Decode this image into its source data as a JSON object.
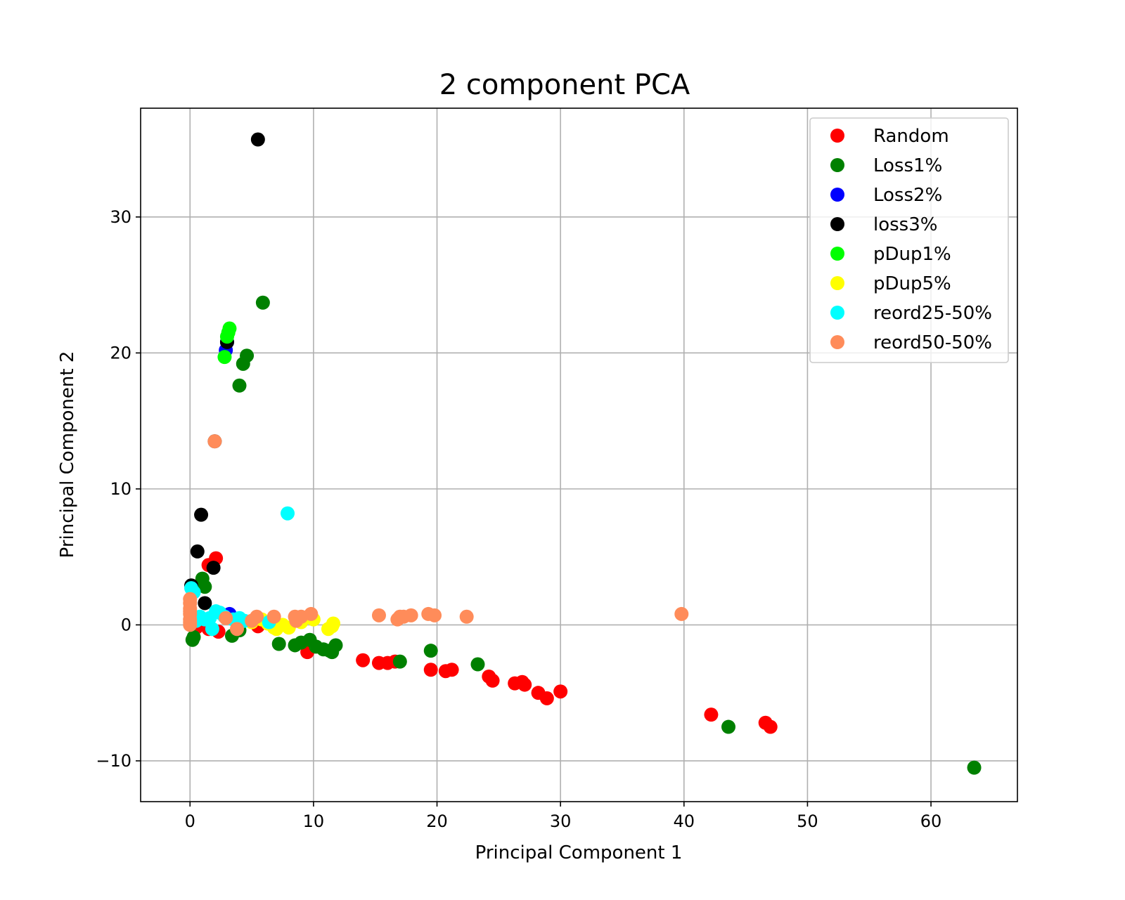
{
  "chart_data": {
    "type": "scatter",
    "title": "2 component PCA",
    "xlabel": "Principal Component 1",
    "ylabel": "Principal Component 2",
    "xlim": [
      -4,
      67
    ],
    "ylim": [
      -13,
      38
    ],
    "xticks": [
      0,
      10,
      20,
      30,
      40,
      50,
      60
    ],
    "yticks": [
      -10,
      0,
      10,
      20,
      30
    ],
    "grid": true,
    "legend_position": "top-right",
    "series": [
      {
        "name": "Random",
        "color": "#ff0000",
        "points": [
          [
            0.5,
            -0.2
          ],
          [
            1.0,
            0.1
          ],
          [
            1.5,
            -0.3
          ],
          [
            2.3,
            -0.5
          ],
          [
            5.5,
            -0.1
          ],
          [
            9.5,
            -2.0
          ],
          [
            14.0,
            -2.6
          ],
          [
            15.3,
            -2.8
          ],
          [
            16.0,
            -2.8
          ],
          [
            16.6,
            -2.7
          ],
          [
            19.5,
            -3.3
          ],
          [
            20.7,
            -3.4
          ],
          [
            21.2,
            -3.3
          ],
          [
            24.2,
            -3.8
          ],
          [
            24.5,
            -4.1
          ],
          [
            26.3,
            -4.3
          ],
          [
            26.9,
            -4.2
          ],
          [
            27.1,
            -4.4
          ],
          [
            28.2,
            -5.0
          ],
          [
            28.9,
            -5.4
          ],
          [
            30.0,
            -4.9
          ],
          [
            42.2,
            -6.6
          ],
          [
            46.6,
            -7.2
          ],
          [
            47.0,
            -7.5
          ],
          [
            1.5,
            4.4
          ],
          [
            2.1,
            4.9
          ]
        ]
      },
      {
        "name": "Loss1%",
        "color": "#008000",
        "points": [
          [
            0.2,
            -1.1
          ],
          [
            0.3,
            -0.9
          ],
          [
            1.0,
            3.4
          ],
          [
            1.2,
            2.8
          ],
          [
            3.4,
            -0.8
          ],
          [
            4.0,
            -0.4
          ],
          [
            7.2,
            -1.4
          ],
          [
            8.5,
            -1.5
          ],
          [
            9.0,
            -1.3
          ],
          [
            9.7,
            -1.1
          ],
          [
            10.2,
            -1.6
          ],
          [
            10.8,
            -1.8
          ],
          [
            11.3,
            -1.9
          ],
          [
            11.5,
            -2.0
          ],
          [
            11.8,
            -1.5
          ],
          [
            17.0,
            -2.7
          ],
          [
            19.5,
            -1.9
          ],
          [
            23.3,
            -2.9
          ],
          [
            43.6,
            -7.5
          ],
          [
            63.5,
            -10.5
          ],
          [
            4.0,
            17.6
          ],
          [
            4.3,
            19.2
          ],
          [
            4.6,
            19.8
          ],
          [
            5.9,
            23.7
          ]
        ]
      },
      {
        "name": "Loss2%",
        "color": "#0000ff",
        "points": [
          [
            3.2,
            0.8
          ],
          [
            2.9,
            20.2
          ],
          [
            3.0,
            20.8
          ]
        ]
      },
      {
        "name": "loss3%",
        "color": "#000000",
        "points": [
          [
            0.1,
            2.9
          ],
          [
            1.2,
            1.6
          ],
          [
            0.6,
            5.4
          ],
          [
            0.9,
            8.1
          ],
          [
            1.9,
            4.2
          ],
          [
            3.0,
            20.8
          ],
          [
            5.5,
            35.7
          ],
          [
            2.0,
            13.5
          ]
        ]
      },
      {
        "name": "pDup1%",
        "color": "#00ff00",
        "points": [
          [
            2.8,
            19.7
          ],
          [
            3.0,
            21.2
          ],
          [
            3.2,
            21.8
          ],
          [
            3.1,
            21.5
          ]
        ]
      },
      {
        "name": "pDup5%",
        "color": "#ffff00",
        "points": [
          [
            5.0,
            0.2
          ],
          [
            5.8,
            0.4
          ],
          [
            6.3,
            0.1
          ],
          [
            6.8,
            -0.2
          ],
          [
            7.0,
            -0.3
          ],
          [
            7.5,
            0.0
          ],
          [
            8.0,
            -0.2
          ],
          [
            9.0,
            0.2
          ],
          [
            10.0,
            0.4
          ],
          [
            11.2,
            -0.3
          ],
          [
            11.5,
            -0.1
          ],
          [
            11.6,
            0.1
          ]
        ]
      },
      {
        "name": "reord25-50%",
        "color": "#00ffff",
        "points": [
          [
            0.1,
            2.7
          ],
          [
            0.3,
            2.4
          ],
          [
            0.5,
            0.3
          ],
          [
            0.8,
            0.6
          ],
          [
            1.2,
            0.4
          ],
          [
            1.6,
            0.5
          ],
          [
            2.1,
            1.0
          ],
          [
            2.4,
            0.9
          ],
          [
            2.8,
            0.6
          ],
          [
            3.5,
            0.4
          ],
          [
            4.0,
            0.5
          ],
          [
            4.4,
            0.3
          ],
          [
            7.9,
            8.2
          ],
          [
            1.8,
            -0.3
          ],
          [
            6.4,
            0.2
          ]
        ]
      },
      {
        "name": "reord50-50%",
        "color": "#ff8c5a",
        "points": [
          [
            0.0,
            0.0
          ],
          [
            0.0,
            0.4
          ],
          [
            0.0,
            0.8
          ],
          [
            0.0,
            1.2
          ],
          [
            0.0,
            1.6
          ],
          [
            0.0,
            1.9
          ],
          [
            0.0,
            0.2
          ],
          [
            0.0,
            1.0
          ],
          [
            2.0,
            13.5
          ],
          [
            2.9,
            0.5
          ],
          [
            3.8,
            -0.3
          ],
          [
            5.0,
            0.3
          ],
          [
            5.4,
            0.6
          ],
          [
            6.8,
            0.6
          ],
          [
            8.5,
            0.6
          ],
          [
            8.6,
            0.3
          ],
          [
            9.0,
            0.6
          ],
          [
            9.8,
            0.8
          ],
          [
            15.3,
            0.7
          ],
          [
            16.8,
            0.4
          ],
          [
            17.0,
            0.6
          ],
          [
            17.3,
            0.6
          ],
          [
            17.9,
            0.7
          ],
          [
            19.3,
            0.8
          ],
          [
            19.8,
            0.7
          ],
          [
            22.4,
            0.6
          ],
          [
            39.8,
            0.8
          ]
        ]
      }
    ]
  }
}
